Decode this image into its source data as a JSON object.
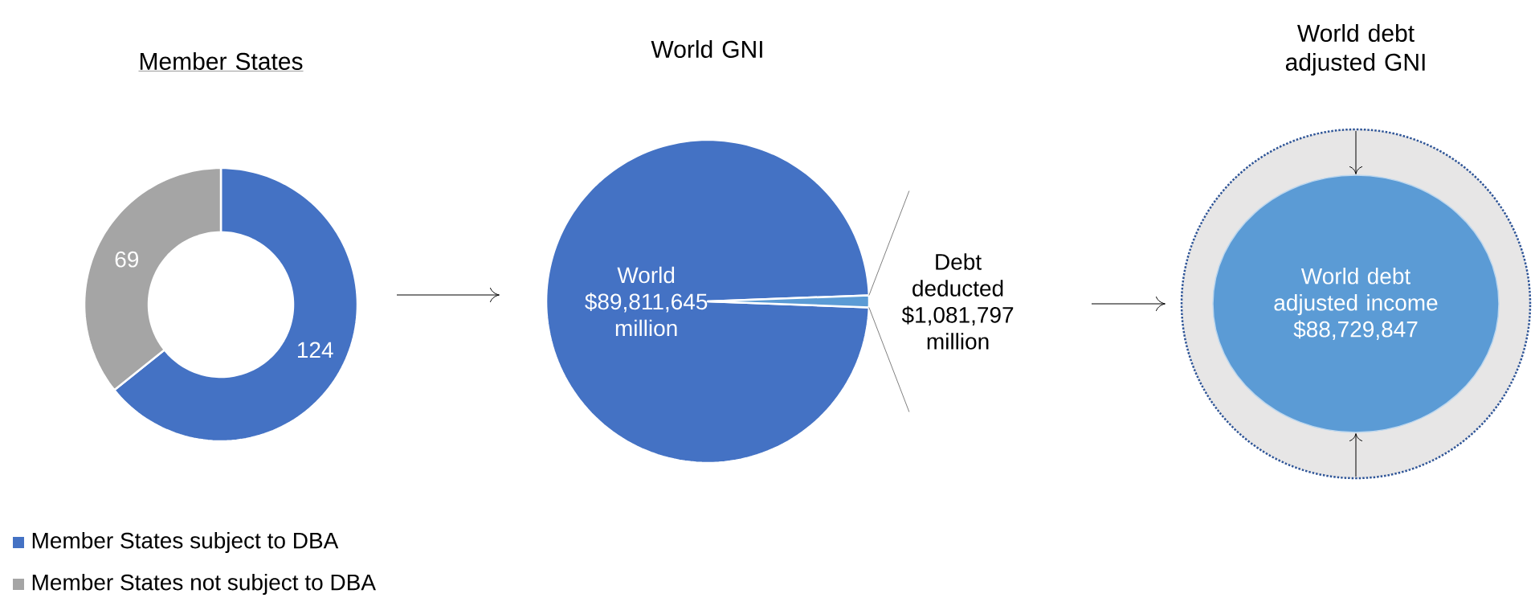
{
  "chart_data": [
    {
      "type": "donut",
      "title": "Member States",
      "categories": [
        "Member States subject to DBA",
        "Member States not subject to DBA"
      ],
      "values": [
        124,
        69
      ],
      "colors": [
        "#4472c4",
        "#a5a5a5"
      ],
      "data_labels": true,
      "legend": "bottom"
    },
    {
      "type": "pie",
      "title": "World GNI",
      "categories": [
        "World",
        "Debt deducted"
      ],
      "values": [
        89811645,
        1081797
      ],
      "value_labels": [
        "$89,811,645 million",
        "$1,081,797 million"
      ],
      "colors": [
        "#4472c4",
        "#5b9bd5"
      ]
    },
    {
      "type": "other",
      "title": "World debt adjusted GNI",
      "annotations": [
        "World debt adjusted income $88,729,847"
      ]
    }
  ]
}
